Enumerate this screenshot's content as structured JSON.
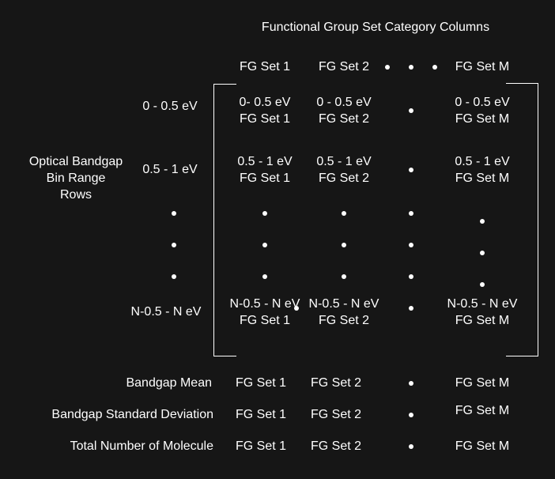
{
  "title": "Functional Group Set Category Columns",
  "columns": {
    "col1": "FG Set 1",
    "col2": "FG Set 2",
    "colM": "FG Set M"
  },
  "row_axis_label": {
    "line1": "Optical Bandgap",
    "line2": "Bin Range",
    "line3": "Rows"
  },
  "rows": [
    {
      "label": "0 - 0.5 eV",
      "c1": {
        "range": "0- 0.5 eV",
        "set": "FG Set 1"
      },
      "c2": {
        "range": "0 - 0.5 eV",
        "set": "FG Set 2"
      },
      "cM": {
        "range": "0 - 0.5 eV",
        "set": "FG Set M"
      }
    },
    {
      "label": "0.5 - 1 eV",
      "c1": {
        "range": "0.5 - 1 eV",
        "set": "FG Set 1"
      },
      "c2": {
        "range": "0.5 - 1 eV",
        "set": "FG Set 2"
      },
      "cM": {
        "range": "0.5 - 1 eV",
        "set": "FG Set M"
      }
    },
    {
      "label": "N-0.5 - N eV",
      "c1": {
        "range": "N-0.5 - N eV",
        "set": "FG Set 1"
      },
      "c2": {
        "range": "N-0.5 - N eV",
        "set": "FG Set 2"
      },
      "cM": {
        "range": "N-0.5 - N eV",
        "set": "FG Set M"
      }
    }
  ],
  "summary_rows": [
    {
      "label": "Bandgap Mean",
      "c1": "FG Set 1",
      "c2": "FG Set 2",
      "cM": "FG Set M"
    },
    {
      "label": "Bandgap Standard Deviation",
      "c1": "FG Set 1",
      "c2": "FG Set 2",
      "cM": "FG Set M"
    },
    {
      "label": "Total Number of Molecule",
      "c1": "FG Set 1",
      "c2": "FG Set 2",
      "cM": "FG Set M"
    }
  ],
  "colors": {
    "background": "#161616",
    "foreground": "#ffffff"
  }
}
